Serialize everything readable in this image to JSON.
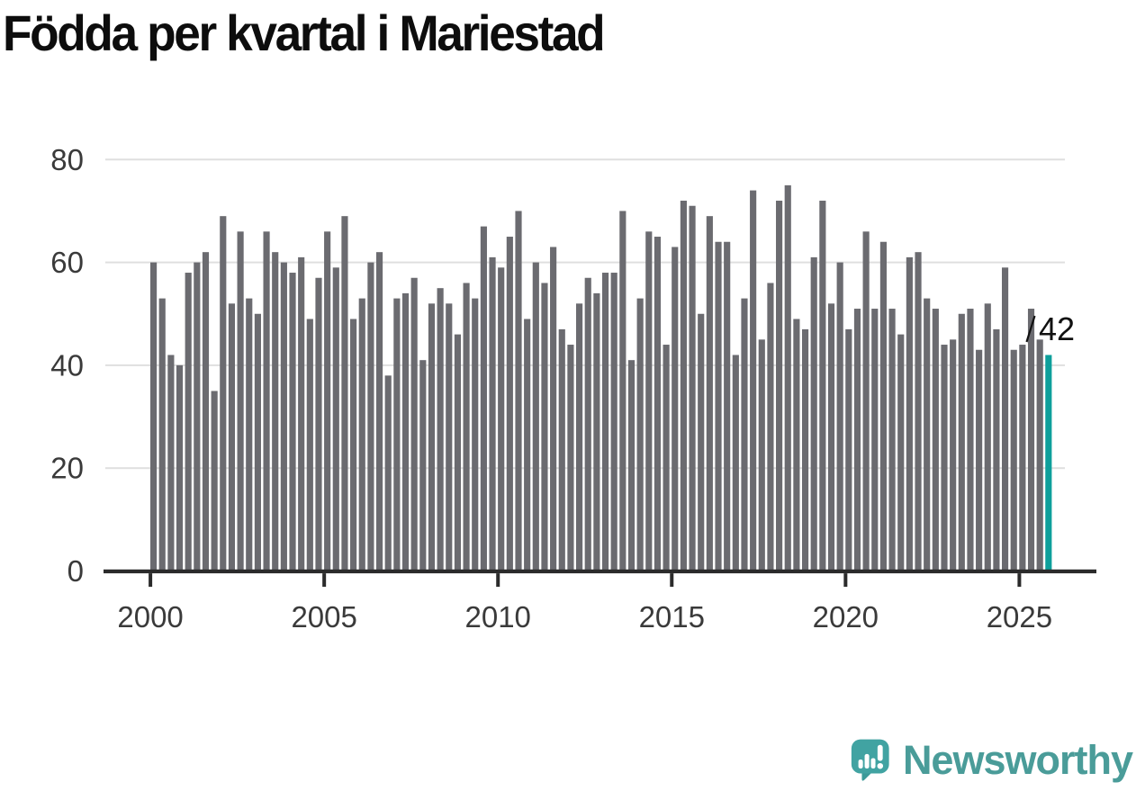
{
  "title": "Födda per kvartal i Mariestad",
  "colors": {
    "bar": "#6b6b70",
    "highlight": "#0d9f9b",
    "gridline": "#dfdfdf",
    "axis": "#2b2b2b",
    "tick_text": "#3a3a3a",
    "title_text": "#0d0d0d",
    "annotation_text": "#111111",
    "brand_teal": "#41a3a2",
    "brand_text": "#4a9c99"
  },
  "branding": {
    "name": "Newsworthy",
    "icon": "newsworthy-speech-bubble-bar-chart-icon"
  },
  "annotation": {
    "last_value_label": "42"
  },
  "chart_data": {
    "type": "bar",
    "title": "Födda per kvartal i Mariestad",
    "x_unit": "quarter",
    "x_start": "2000 Q1",
    "x_end": "2025 Q4",
    "x_tick_labels": [
      "2000",
      "2005",
      "2010",
      "2015",
      "2020",
      "2025"
    ],
    "y_ticks": [
      0,
      20,
      40,
      60,
      80
    ],
    "y_tick_labels": [
      "0",
      "20",
      "40",
      "60",
      "80"
    ],
    "ylim": [
      0,
      85
    ],
    "grid": "horizontal",
    "legend": "none",
    "highlight_last_bar": true,
    "last_value_label": "42",
    "values": [
      60,
      53,
      42,
      40,
      58,
      60,
      62,
      35,
      69,
      52,
      66,
      53,
      50,
      66,
      62,
      60,
      58,
      61,
      49,
      57,
      66,
      59,
      69,
      49,
      53,
      60,
      62,
      38,
      53,
      54,
      57,
      41,
      52,
      55,
      52,
      46,
      56,
      53,
      67,
      61,
      59,
      65,
      70,
      49,
      60,
      56,
      63,
      47,
      44,
      52,
      57,
      54,
      58,
      58,
      70,
      41,
      53,
      66,
      65,
      44,
      63,
      72,
      71,
      50,
      69,
      64,
      64,
      42,
      53,
      74,
      45,
      56,
      72,
      75,
      49,
      47,
      61,
      72,
      52,
      60,
      47,
      51,
      66,
      51,
      64,
      51,
      46,
      61,
      62,
      53,
      51,
      44,
      45,
      50,
      51,
      43,
      52,
      47,
      59,
      43,
      44,
      51,
      45,
      42
    ],
    "start_year": 2000
  }
}
